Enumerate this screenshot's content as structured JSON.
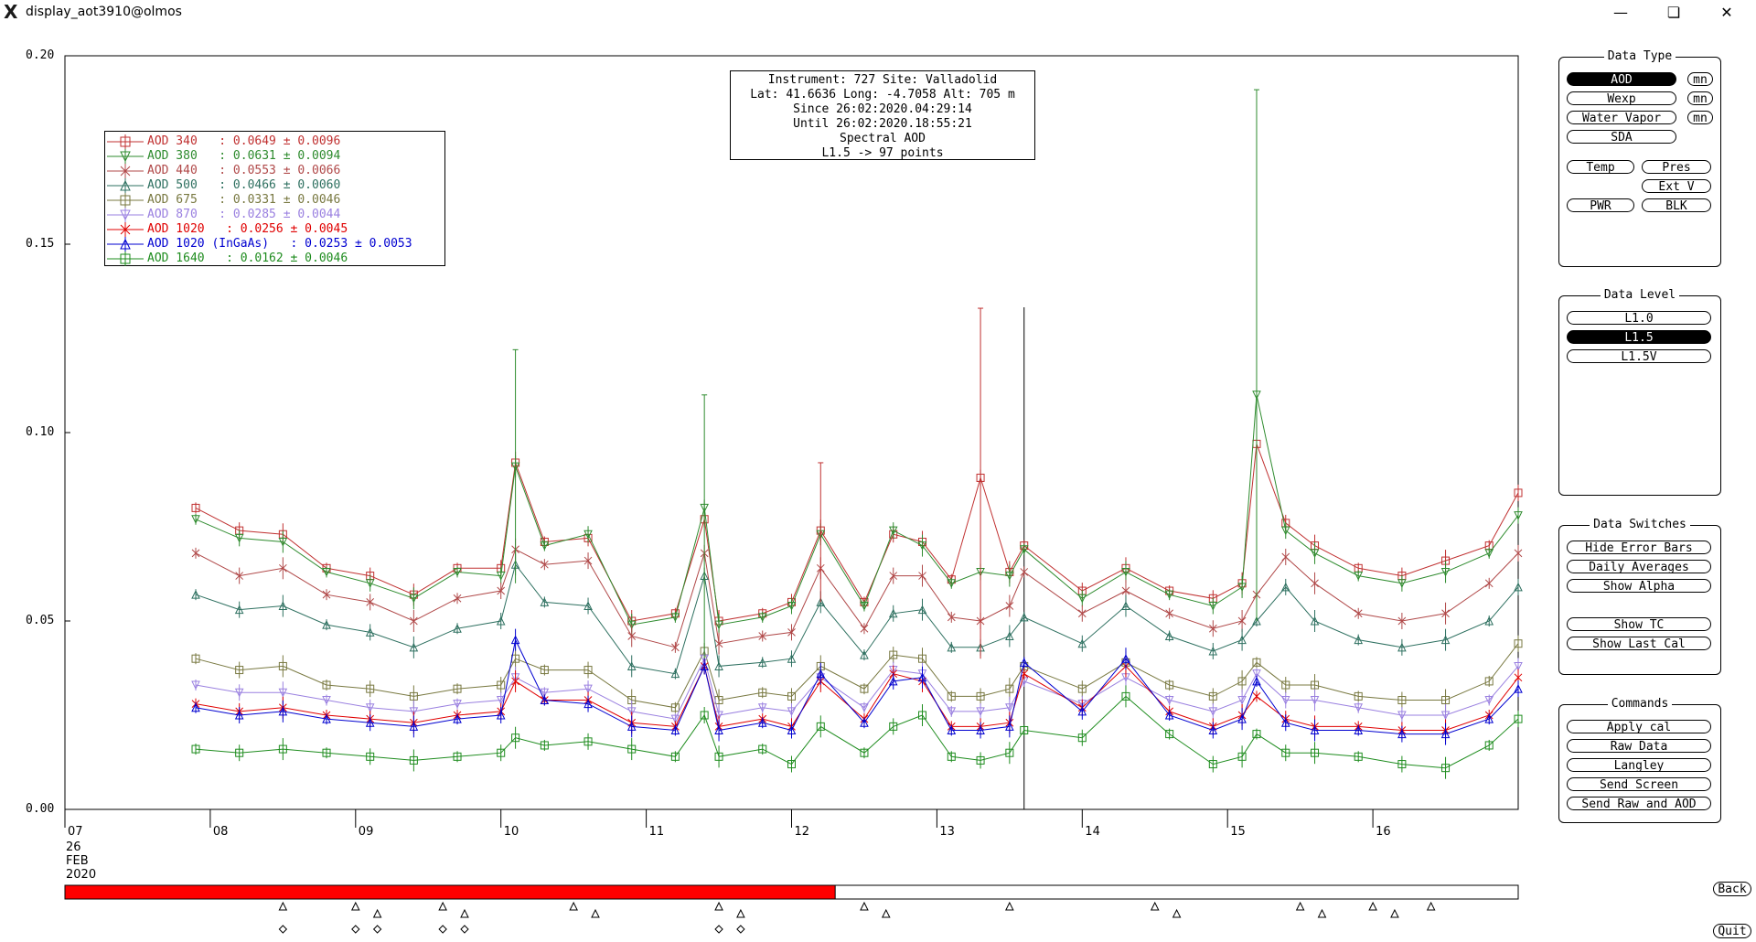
{
  "window": {
    "title": "display_aot3910@olmos",
    "app_icon": "x11-icon",
    "minimize_icon": "minimize-icon",
    "restore_icon": "restore-icon",
    "close_icon": "close-icon"
  },
  "info_box": {
    "line1": "Instrument: 727 Site: Valladolid",
    "line2": "Lat: 41.6636 Long: -4.7058 Alt: 705 m",
    "line3": "Since 26:02:2020.04:29:14",
    "line4": "Until 26:02:2020.18:55:21",
    "line5": "Spectral AOD",
    "line6": "L1.5 -> 97 points"
  },
  "legend": [
    {
      "label": "AOD 340   : 0.0649 ± 0.0096",
      "color": "#c03030",
      "marker": "square"
    },
    {
      "label": "AOD 380   : 0.0631 ± 0.0094",
      "color": "#2e8b2e",
      "marker": "tri-down"
    },
    {
      "label": "AOD 440   : 0.0553 ± 0.0066",
      "color": "#b04848",
      "marker": "x"
    },
    {
      "label": "AOD 500   : 0.0466 ± 0.0060",
      "color": "#2e7060",
      "marker": "tri-up"
    },
    {
      "label": "AOD 675   : 0.0331 ± 0.0046",
      "color": "#787840",
      "marker": "square"
    },
    {
      "label": "AOD 870   : 0.0285 ± 0.0044",
      "color": "#9a80e0",
      "marker": "tri-down"
    },
    {
      "label": "AOD 1020   : 0.0256 ± 0.0045",
      "color": "#e00000",
      "marker": "x"
    },
    {
      "label": "AOD 1020 (InGaAs)   : 0.0253 ± 0.0053",
      "color": "#0000d0",
      "marker": "tri-up"
    },
    {
      "label": "AOD 1640   : 0.0162 ± 0.0046",
      "color": "#1e8c1e",
      "marker": "square"
    }
  ],
  "axes": {
    "y_ticks": [
      "0.00",
      "0.05",
      "0.10",
      "0.15",
      "0.20"
    ],
    "x_ticks": [
      "07",
      "08",
      "09",
      "10",
      "11",
      "12",
      "13",
      "14",
      "15",
      "16"
    ],
    "date_line1": "26",
    "date_line2": "FEB",
    "date_line3": "2020"
  },
  "chart_data": {
    "type": "line",
    "x_label_unit": "hour (26 FEB 2020)",
    "ylim": [
      0,
      0.2
    ],
    "xlim": [
      7.0,
      17.0
    ],
    "cursor_x": 13.6,
    "x": [
      7.9,
      8.2,
      8.5,
      8.8,
      9.1,
      9.4,
      9.7,
      10.0,
      10.1,
      10.3,
      10.6,
      10.9,
      11.2,
      11.4,
      11.5,
      11.8,
      12.0,
      12.2,
      12.5,
      12.7,
      12.9,
      13.1,
      13.3,
      13.5,
      13.6,
      14.0,
      14.3,
      14.6,
      14.9,
      15.1,
      15.2,
      15.4,
      15.6,
      15.9,
      16.2,
      16.5,
      16.8,
      17.0
    ],
    "series": [
      {
        "name": "AOD 340",
        "color": "#c03030",
        "values": [
          0.08,
          0.074,
          0.073,
          0.064,
          0.062,
          0.057,
          0.064,
          0.064,
          0.092,
          0.071,
          0.072,
          0.05,
          0.052,
          0.077,
          0.05,
          0.052,
          0.055,
          0.074,
          0.055,
          0.073,
          0.071,
          0.061,
          0.088,
          0.063,
          0.07,
          0.058,
          0.064,
          0.058,
          0.056,
          0.06,
          0.097,
          0.076,
          0.07,
          0.064,
          0.062,
          0.066,
          0.07,
          0.084
        ]
      },
      {
        "name": "AOD 380",
        "color": "#2e8b2e",
        "values": [
          0.077,
          0.072,
          0.071,
          0.063,
          0.06,
          0.056,
          0.063,
          0.062,
          0.091,
          0.07,
          0.073,
          0.049,
          0.051,
          0.08,
          0.049,
          0.051,
          0.054,
          0.073,
          0.054,
          0.074,
          0.07,
          0.06,
          0.063,
          0.062,
          0.069,
          0.056,
          0.063,
          0.057,
          0.054,
          0.059,
          0.11,
          0.074,
          0.068,
          0.062,
          0.06,
          0.063,
          0.068,
          0.078
        ]
      },
      {
        "name": "AOD 440",
        "color": "#b04848",
        "values": [
          0.068,
          0.062,
          0.064,
          0.057,
          0.055,
          0.05,
          0.056,
          0.058,
          0.069,
          0.065,
          0.066,
          0.046,
          0.043,
          0.068,
          0.044,
          0.046,
          0.047,
          0.064,
          0.048,
          0.062,
          0.062,
          0.051,
          0.05,
          0.054,
          0.063,
          0.052,
          0.058,
          0.052,
          0.048,
          0.05,
          0.057,
          0.067,
          0.06,
          0.052,
          0.05,
          0.052,
          0.06,
          0.068
        ]
      },
      {
        "name": "AOD 500",
        "color": "#2e7060",
        "values": [
          0.057,
          0.053,
          0.054,
          0.049,
          0.047,
          0.043,
          0.048,
          0.05,
          0.065,
          0.055,
          0.054,
          0.038,
          0.036,
          0.062,
          0.038,
          0.039,
          0.04,
          0.055,
          0.041,
          0.052,
          0.053,
          0.043,
          0.043,
          0.046,
          0.051,
          0.044,
          0.054,
          0.046,
          0.042,
          0.045,
          0.05,
          0.059,
          0.05,
          0.045,
          0.043,
          0.045,
          0.05,
          0.059
        ]
      },
      {
        "name": "AOD 675",
        "color": "#787840",
        "values": [
          0.04,
          0.037,
          0.038,
          0.033,
          0.032,
          0.03,
          0.032,
          0.033,
          0.04,
          0.037,
          0.037,
          0.029,
          0.027,
          0.042,
          0.029,
          0.031,
          0.03,
          0.038,
          0.032,
          0.041,
          0.04,
          0.03,
          0.03,
          0.032,
          0.038,
          0.032,
          0.039,
          0.033,
          0.03,
          0.034,
          0.039,
          0.033,
          0.033,
          0.03,
          0.029,
          0.029,
          0.034,
          0.044
        ]
      },
      {
        "name": "AOD 870",
        "color": "#9a80e0",
        "values": [
          0.033,
          0.031,
          0.031,
          0.029,
          0.027,
          0.026,
          0.028,
          0.029,
          0.035,
          0.031,
          0.032,
          0.026,
          0.024,
          0.04,
          0.025,
          0.027,
          0.026,
          0.035,
          0.027,
          0.037,
          0.036,
          0.026,
          0.026,
          0.027,
          0.034,
          0.028,
          0.035,
          0.029,
          0.026,
          0.029,
          0.036,
          0.029,
          0.029,
          0.027,
          0.025,
          0.025,
          0.029,
          0.038
        ]
      },
      {
        "name": "AOD 1020",
        "color": "#e00000",
        "values": [
          0.028,
          0.026,
          0.027,
          0.025,
          0.024,
          0.023,
          0.025,
          0.026,
          0.034,
          0.029,
          0.029,
          0.023,
          0.022,
          0.038,
          0.022,
          0.024,
          0.022,
          0.034,
          0.024,
          0.036,
          0.034,
          0.022,
          0.022,
          0.023,
          0.036,
          0.027,
          0.038,
          0.026,
          0.022,
          0.025,
          0.03,
          0.024,
          0.022,
          0.022,
          0.021,
          0.021,
          0.025,
          0.035
        ]
      },
      {
        "name": "AOD 1020 (InGaAs)",
        "color": "#0000d0",
        "values": [
          0.027,
          0.025,
          0.026,
          0.024,
          0.023,
          0.022,
          0.024,
          0.025,
          0.045,
          0.029,
          0.028,
          0.022,
          0.021,
          0.038,
          0.021,
          0.023,
          0.021,
          0.036,
          0.023,
          0.034,
          0.035,
          0.021,
          0.021,
          0.022,
          0.039,
          0.026,
          0.04,
          0.025,
          0.021,
          0.024,
          0.034,
          0.023,
          0.021,
          0.021,
          0.02,
          0.02,
          0.024,
          0.032
        ]
      },
      {
        "name": "AOD 1640",
        "color": "#1e8c1e",
        "values": [
          0.016,
          0.015,
          0.016,
          0.015,
          0.014,
          0.013,
          0.014,
          0.015,
          0.019,
          0.017,
          0.018,
          0.016,
          0.014,
          0.025,
          0.014,
          0.016,
          0.012,
          0.022,
          0.015,
          0.022,
          0.025,
          0.014,
          0.013,
          0.015,
          0.021,
          0.019,
          0.03,
          0.02,
          0.012,
          0.014,
          0.02,
          0.015,
          0.015,
          0.014,
          0.012,
          0.011,
          0.017,
          0.024
        ]
      }
    ],
    "spikes": [
      {
        "x": 10.1,
        "low": 0.06,
        "high": 0.122,
        "color": "#2e8b2e"
      },
      {
        "x": 11.4,
        "low": 0.04,
        "high": 0.11,
        "color": "#2e8b2e"
      },
      {
        "x": 12.2,
        "low": 0.055,
        "high": 0.092,
        "color": "#c03030"
      },
      {
        "x": 13.3,
        "low": 0.04,
        "high": 0.133,
        "color": "#c03030"
      },
      {
        "x": 15.2,
        "low": 0.05,
        "high": 0.191,
        "color": "#2e8b2e"
      }
    ],
    "progress_fraction": 0.53,
    "markers_triangle_x": [
      8.5,
      9.0,
      9.15,
      9.6,
      9.75,
      10.5,
      10.65,
      11.5,
      11.65,
      12.5,
      12.65,
      13.5,
      14.5,
      14.65,
      15.5,
      15.65,
      16.0,
      16.15,
      16.4
    ],
    "markers_diamond_x": [
      8.5,
      9.0,
      9.15,
      9.6,
      9.75,
      11.5,
      11.65
    ]
  },
  "panels": {
    "data_type": {
      "title": "Data Type",
      "buttons": [
        {
          "label": "AOD",
          "active": true
        },
        {
          "label": "Wexp",
          "active": false
        },
        {
          "label": "Water Vapor",
          "active": false
        },
        {
          "label": "SDA",
          "active": false
        }
      ],
      "mn_label": "mn",
      "small": [
        {
          "label": "Temp"
        },
        {
          "label": "Pres"
        },
        {
          "label": "Ext V"
        },
        {
          "label": "PWR"
        },
        {
          "label": "BLK"
        }
      ]
    },
    "data_level": {
      "title": "Data Level",
      "buttons": [
        {
          "label": "L1.0",
          "active": false
        },
        {
          "label": "L1.5",
          "active": true
        },
        {
          "label": "L1.5V",
          "active": false
        }
      ]
    },
    "data_switches": {
      "title": "Data Switches",
      "buttons": [
        {
          "label": "Hide Error Bars"
        },
        {
          "label": "Daily Averages"
        },
        {
          "label": "Show Alpha"
        },
        {
          "label": "Show TC"
        },
        {
          "label": "Show Last Cal"
        }
      ]
    },
    "commands": {
      "title": "Commands",
      "buttons": [
        {
          "label": "Apply cal"
        },
        {
          "label": "Raw Data"
        },
        {
          "label": "Langley"
        },
        {
          "label": "Send Screen"
        },
        {
          "label": "Send Raw and AOD"
        }
      ]
    }
  },
  "nav": {
    "back_label": "Back",
    "quit_label": "Quit"
  }
}
